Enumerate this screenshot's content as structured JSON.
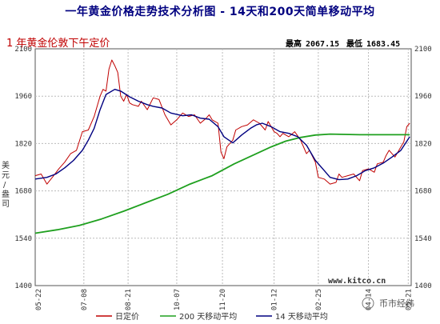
{
  "title": "一年黄金价格走势技术分析图 - 14天和200天简单移动平均",
  "subtitle": "1 年黄金伦敦下午定价",
  "stats": {
    "high_label": "最高",
    "high_value": "2067.15",
    "low_label": "最低",
    "low_value": "1683.45"
  },
  "ylabel_chars": [
    "美",
    "元",
    "/",
    "盎",
    "司"
  ],
  "watermark": "www.kitco.cn",
  "logo_text": "币市经纬",
  "colors": {
    "price": "#c00000",
    "ma14": "#000080",
    "ma200": "#1fa01f",
    "frame": "#555555"
  },
  "chart_data": {
    "type": "line",
    "ylim": [
      1400,
      2100
    ],
    "yticks": [
      1400,
      1540,
      1680,
      1820,
      1960,
      2100
    ],
    "xlim": [
      0,
      255
    ],
    "xticks": [
      {
        "label": "05-22",
        "x": 0
      },
      {
        "label": "07-08",
        "x": 33
      },
      {
        "label": "08-21",
        "x": 63
      },
      {
        "label": "10-07",
        "x": 96
      },
      {
        "label": "11-20",
        "x": 127
      },
      {
        "label": "01-12",
        "x": 162
      },
      {
        "label": "02-25",
        "x": 192
      },
      {
        "label": "04-14",
        "x": 226
      },
      {
        "label": "05-21",
        "x": 253
      }
    ],
    "series": [
      {
        "name": "日定价",
        "points": [
          [
            0,
            1725
          ],
          [
            4,
            1730
          ],
          [
            8,
            1700
          ],
          [
            12,
            1722
          ],
          [
            16,
            1745
          ],
          [
            20,
            1765
          ],
          [
            24,
            1790
          ],
          [
            28,
            1800
          ],
          [
            32,
            1855
          ],
          [
            36,
            1860
          ],
          [
            40,
            1900
          ],
          [
            44,
            1960
          ],
          [
            46,
            1980
          ],
          [
            48,
            1975
          ],
          [
            50,
            2040
          ],
          [
            52,
            2067
          ],
          [
            54,
            2050
          ],
          [
            56,
            2030
          ],
          [
            58,
            1960
          ],
          [
            60,
            1945
          ],
          [
            62,
            1965
          ],
          [
            64,
            1940
          ],
          [
            66,
            1935
          ],
          [
            70,
            1930
          ],
          [
            72,
            1945
          ],
          [
            76,
            1920
          ],
          [
            80,
            1955
          ],
          [
            84,
            1950
          ],
          [
            88,
            1905
          ],
          [
            92,
            1875
          ],
          [
            96,
            1890
          ],
          [
            100,
            1910
          ],
          [
            104,
            1900
          ],
          [
            108,
            1905
          ],
          [
            112,
            1880
          ],
          [
            116,
            1895
          ],
          [
            118,
            1905
          ],
          [
            120,
            1890
          ],
          [
            124,
            1880
          ],
          [
            126,
            1795
          ],
          [
            128,
            1775
          ],
          [
            130,
            1810
          ],
          [
            134,
            1830
          ],
          [
            136,
            1860
          ],
          [
            140,
            1870
          ],
          [
            144,
            1875
          ],
          [
            148,
            1890
          ],
          [
            152,
            1880
          ],
          [
            156,
            1860
          ],
          [
            158,
            1885
          ],
          [
            162,
            1855
          ],
          [
            164,
            1850
          ],
          [
            166,
            1840
          ],
          [
            168,
            1850
          ],
          [
            172,
            1840
          ],
          [
            176,
            1855
          ],
          [
            180,
            1830
          ],
          [
            184,
            1790
          ],
          [
            186,
            1800
          ],
          [
            190,
            1765
          ],
          [
            192,
            1720
          ],
          [
            196,
            1715
          ],
          [
            200,
            1700
          ],
          [
            204,
            1705
          ],
          [
            206,
            1730
          ],
          [
            208,
            1720
          ],
          [
            212,
            1725
          ],
          [
            216,
            1730
          ],
          [
            220,
            1710
          ],
          [
            222,
            1740
          ],
          [
            226,
            1745
          ],
          [
            230,
            1735
          ],
          [
            232,
            1760
          ],
          [
            236,
            1765
          ],
          [
            238,
            1785
          ],
          [
            240,
            1800
          ],
          [
            244,
            1780
          ],
          [
            246,
            1795
          ],
          [
            248,
            1810
          ],
          [
            250,
            1825
          ],
          [
            252,
            1870
          ],
          [
            254,
            1880
          ]
        ]
      },
      {
        "name": "200 天移动平均",
        "points": [
          [
            0,
            1555
          ],
          [
            15,
            1565
          ],
          [
            30,
            1578
          ],
          [
            45,
            1597
          ],
          [
            60,
            1620
          ],
          [
            75,
            1645
          ],
          [
            90,
            1670
          ],
          [
            105,
            1700
          ],
          [
            120,
            1725
          ],
          [
            135,
            1760
          ],
          [
            150,
            1790
          ],
          [
            160,
            1810
          ],
          [
            170,
            1827
          ],
          [
            180,
            1838
          ],
          [
            190,
            1845
          ],
          [
            200,
            1848
          ],
          [
            210,
            1847
          ],
          [
            220,
            1846
          ],
          [
            230,
            1846
          ],
          [
            240,
            1846
          ],
          [
            254,
            1846
          ]
        ]
      },
      {
        "name": "14 天移动平均",
        "points": [
          [
            0,
            1715
          ],
          [
            8,
            1720
          ],
          [
            14,
            1730
          ],
          [
            20,
            1748
          ],
          [
            26,
            1770
          ],
          [
            32,
            1800
          ],
          [
            36,
            1830
          ],
          [
            40,
            1865
          ],
          [
            44,
            1920
          ],
          [
            48,
            1965
          ],
          [
            54,
            1980
          ],
          [
            58,
            1975
          ],
          [
            64,
            1958
          ],
          [
            70,
            1945
          ],
          [
            76,
            1935
          ],
          [
            80,
            1930
          ],
          [
            86,
            1925
          ],
          [
            92,
            1910
          ],
          [
            100,
            1902
          ],
          [
            106,
            1905
          ],
          [
            112,
            1895
          ],
          [
            118,
            1892
          ],
          [
            124,
            1870
          ],
          [
            128,
            1840
          ],
          [
            134,
            1822
          ],
          [
            140,
            1845
          ],
          [
            146,
            1865
          ],
          [
            150,
            1875
          ],
          [
            154,
            1880
          ],
          [
            160,
            1870
          ],
          [
            166,
            1855
          ],
          [
            172,
            1850
          ],
          [
            178,
            1840
          ],
          [
            184,
            1815
          ],
          [
            190,
            1770
          ],
          [
            196,
            1740
          ],
          [
            200,
            1720
          ],
          [
            206,
            1713
          ],
          [
            212,
            1715
          ],
          [
            218,
            1725
          ],
          [
            224,
            1740
          ],
          [
            230,
            1748
          ],
          [
            236,
            1762
          ],
          [
            242,
            1780
          ],
          [
            248,
            1800
          ],
          [
            254,
            1840
          ]
        ]
      }
    ]
  }
}
